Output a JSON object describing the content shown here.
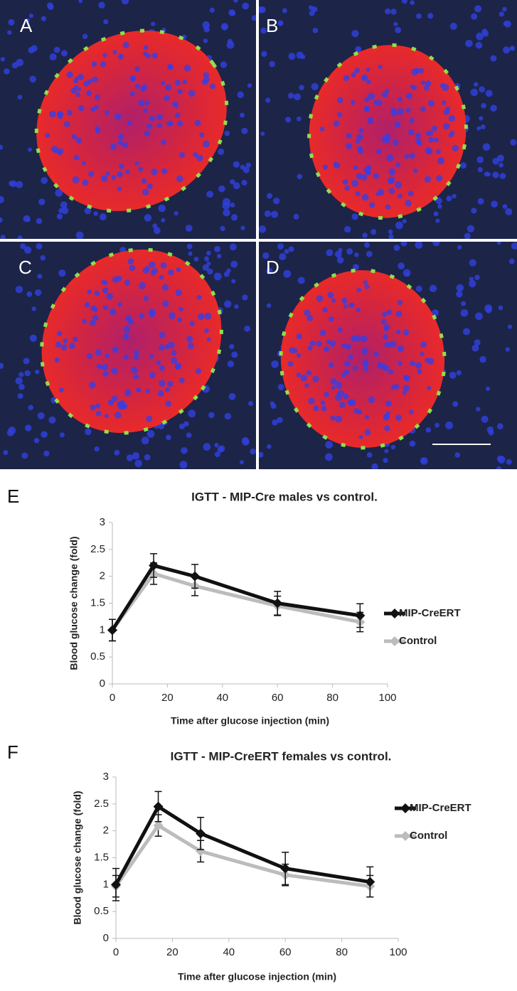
{
  "panels": [
    {
      "label": "A"
    },
    {
      "label": "B"
    },
    {
      "label": "C"
    },
    {
      "label": "D"
    }
  ],
  "chart_data": [
    {
      "type": "line",
      "panel_label": "E",
      "title": "IGTT - MIP-Cre males vs control.",
      "x_label": "Time after glucose injection (min)",
      "y_label": "Blood glucose change (fold)",
      "x": [
        0,
        15,
        30,
        60,
        90
      ],
      "xlim": [
        0,
        100
      ],
      "xticks": [
        0,
        20,
        40,
        60,
        80,
        100
      ],
      "ylim": [
        0,
        3
      ],
      "yticks": [
        0,
        0.5,
        1,
        1.5,
        2,
        2.5,
        3
      ],
      "grid": false,
      "legend": "right",
      "series": [
        {
          "name": "MIP-CreERT",
          "color": "#111111",
          "values": [
            1,
            2.2,
            2.0,
            1.5,
            1.27
          ],
          "errors": [
            0.2,
            0.22,
            0.22,
            0.22,
            0.22
          ]
        },
        {
          "name": "Control",
          "color": "#bcbcbc",
          "values": [
            1,
            2.05,
            1.82,
            1.45,
            1.15
          ],
          "errors": [
            0.2,
            0.2,
            0.18,
            0.18,
            0.18
          ]
        }
      ]
    },
    {
      "type": "line",
      "panel_label": "F",
      "title": "IGTT - MIP-CreERT females vs control.",
      "x_label": "Time after glucose injection (min)",
      "y_label": "Blood glucose change (fold)",
      "x": [
        0,
        15,
        30,
        60,
        90
      ],
      "xlim": [
        0,
        100
      ],
      "xticks": [
        0,
        20,
        40,
        60,
        80,
        100
      ],
      "ylim": [
        0,
        3
      ],
      "yticks": [
        0,
        0.5,
        1,
        1.5,
        2,
        2.5,
        3
      ],
      "grid": false,
      "legend": "right",
      "series": [
        {
          "name": "MIP-CreERT",
          "color": "#111111",
          "values": [
            1,
            2.45,
            1.95,
            1.3,
            1.05
          ],
          "errors": [
            0.3,
            0.28,
            0.3,
            0.3,
            0.28
          ]
        },
        {
          "name": "Control",
          "color": "#bcbcbc",
          "values": [
            0.97,
            2.1,
            1.62,
            1.18,
            0.97
          ],
          "errors": [
            0.2,
            0.2,
            0.2,
            0.2,
            0.2
          ]
        }
      ]
    }
  ]
}
